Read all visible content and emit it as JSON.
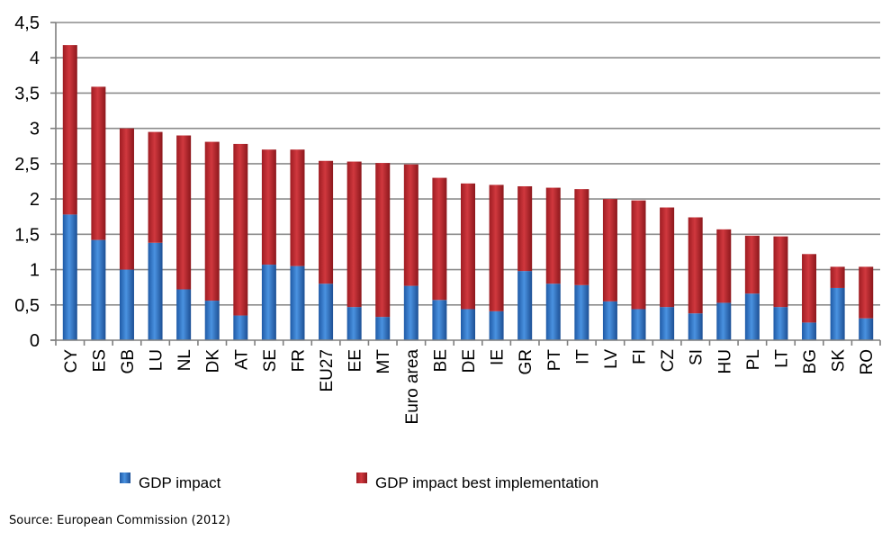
{
  "chart_data": {
    "type": "bar",
    "stacked": true,
    "categories": [
      "CY",
      "ES",
      "GB",
      "LU",
      "NL",
      "DK",
      "AT",
      "SE",
      "FR",
      "EU27",
      "EE",
      "MT",
      "Euro area",
      "BE",
      "DE",
      "IE",
      "GR",
      "PT",
      "IT",
      "LV",
      "FI",
      "CZ",
      "SI",
      "HU",
      "PL",
      "LT",
      "BG",
      "SK",
      "RO"
    ],
    "series": [
      {
        "name": "GDP impact",
        "color": "#2e75c6",
        "values": [
          1.78,
          1.42,
          1.0,
          1.38,
          0.72,
          0.56,
          0.35,
          1.07,
          1.05,
          0.8,
          0.47,
          0.33,
          0.77,
          0.57,
          0.44,
          0.41,
          0.98,
          0.8,
          0.78,
          0.55,
          0.44,
          0.47,
          0.38,
          0.53,
          0.66,
          0.47,
          0.25,
          0.74,
          0.31
        ]
      },
      {
        "name": "GDP impact best implementation",
        "color": "#c0272d",
        "values": [
          2.4,
          2.17,
          2.0,
          1.57,
          2.18,
          2.25,
          2.43,
          1.63,
          1.65,
          1.74,
          2.06,
          2.18,
          1.72,
          1.73,
          1.78,
          1.79,
          1.2,
          1.36,
          1.36,
          1.45,
          1.54,
          1.41,
          1.36,
          1.04,
          0.82,
          1.0,
          0.97,
          0.3,
          0.73
        ]
      }
    ],
    "ylim": [
      0,
      4.5
    ],
    "yticks": [
      "0",
      "0,5",
      "1",
      "1,5",
      "2",
      "2,5",
      "3",
      "3,5",
      "4",
      "4,5"
    ],
    "grid": true,
    "legend": "bottom"
  },
  "source": "Source: European Commission (2012)"
}
